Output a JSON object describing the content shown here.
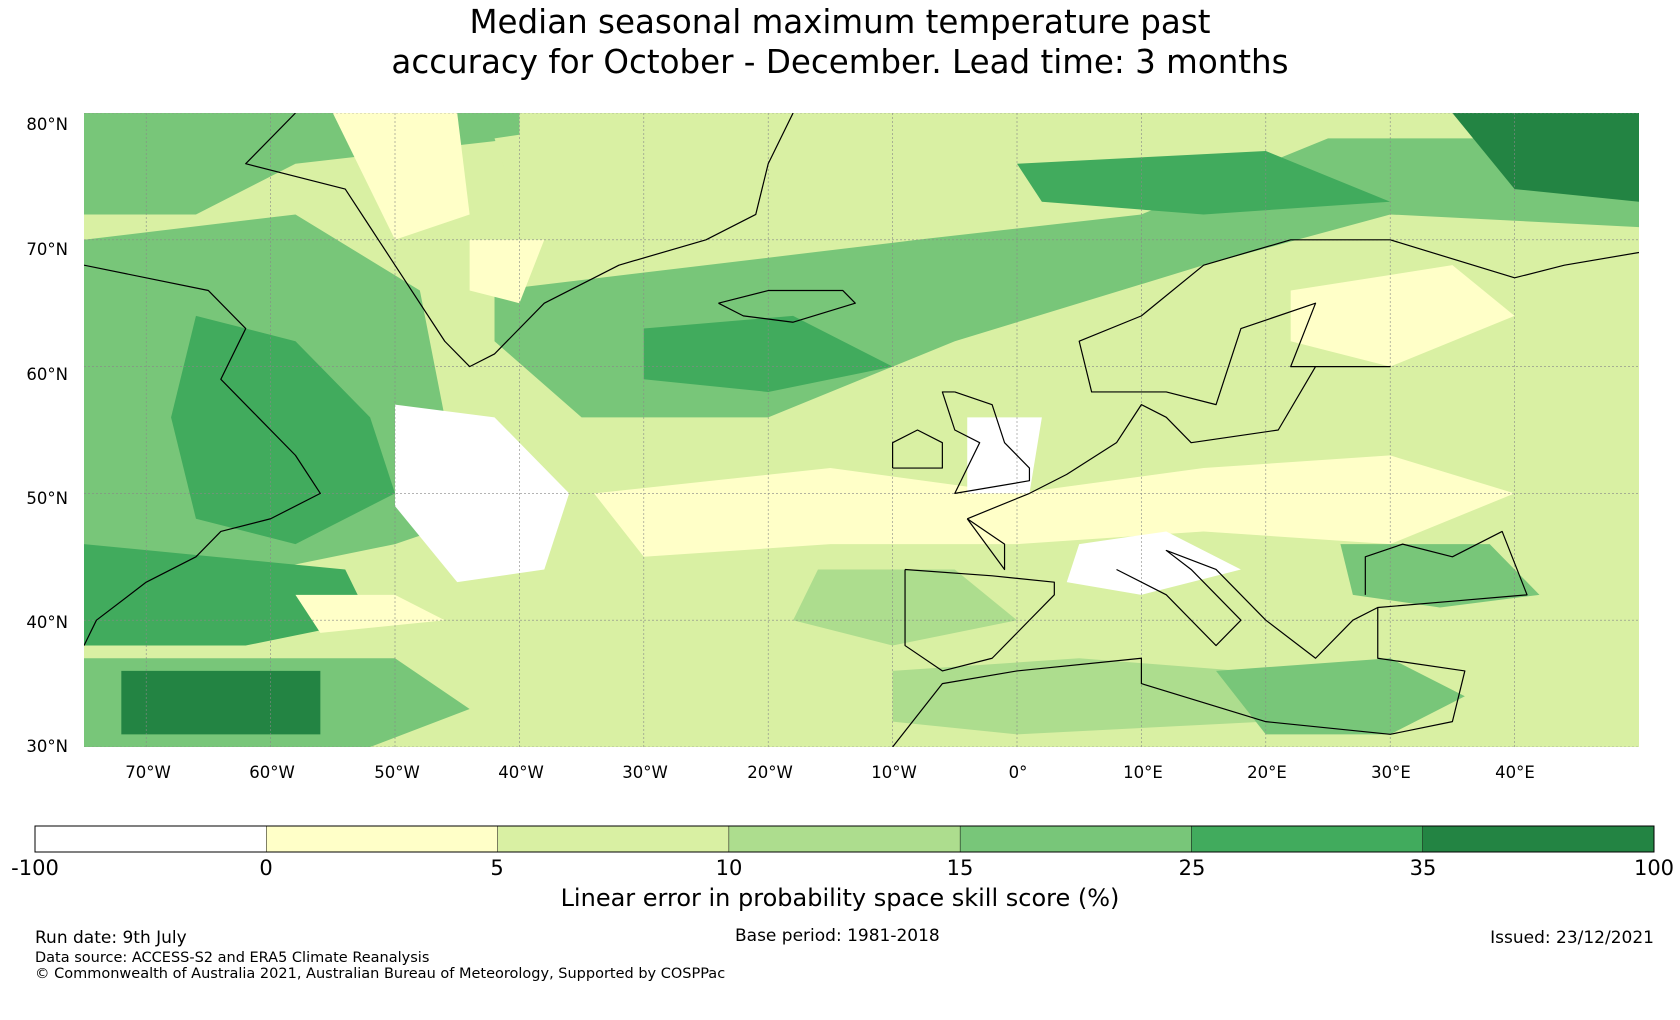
{
  "title": {
    "line1": "Median seasonal maximum temperature past",
    "line2": "accuracy for October - December. Lead time: 3 months"
  },
  "map": {
    "lat_labels": [
      "80°N",
      "70°N",
      "60°N",
      "50°N",
      "40°N",
      "30°N"
    ],
    "lon_labels": [
      "70°W",
      "60°W",
      "50°W",
      "40°W",
      "30°W",
      "20°W",
      "10°W",
      "0°",
      "10°E",
      "20°E",
      "30°E",
      "40°E"
    ],
    "lat_range": [
      30,
      80
    ],
    "lon_range": [
      -75,
      50
    ],
    "gridlines": true
  },
  "colorbar": {
    "bins": [
      {
        "from": "-100",
        "to": "0",
        "color": "#ffffff"
      },
      {
        "from": "0",
        "to": "5",
        "color": "#ffffc8"
      },
      {
        "from": "5",
        "to": "10",
        "color": "#d9f0a3"
      },
      {
        "from": "10",
        "to": "15",
        "color": "#addd8e"
      },
      {
        "from": "15",
        "to": "25",
        "color": "#78c679"
      },
      {
        "from": "25",
        "to": "35",
        "color": "#41ab5d"
      },
      {
        "from": "35",
        "to": "100",
        "color": "#238443"
      }
    ],
    "tick_labels": [
      "-100",
      "0",
      "5",
      "10",
      "15",
      "25",
      "35",
      "100"
    ],
    "label": "Linear error in probability space skill score (%)"
  },
  "footer": {
    "run_date": "Run date: 9th July",
    "base_period": "Base period: 1981-2018",
    "issued": "Issued: 23/12/2021",
    "data_source": "Data source: ACCESS-S2 and ERA5 Climate Reanalysis",
    "copyright": "© Commonwealth of Australia 2021, Australian Bureau of Meteorology, Supported by COSPPac"
  }
}
